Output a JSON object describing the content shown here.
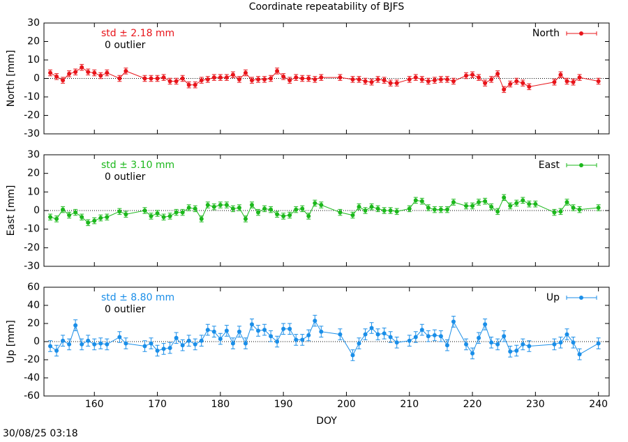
{
  "title": "Coordinate repeatability of BJFS",
  "timestamp": "30/08/25 03:18",
  "chart_data": [
    {
      "type": "line",
      "ylabel": "North [mm]",
      "annotations": [
        "std ± 2.18 mm",
        "0 outlier"
      ],
      "xlim": [
        152,
        241.7
      ],
      "xticks": [
        160,
        170,
        180,
        190,
        200,
        210,
        220,
        230,
        240
      ],
      "ylim": [
        -30,
        30
      ],
      "yticks": [
        -30,
        -20,
        -10,
        0,
        10,
        20,
        30
      ],
      "series": [
        {
          "name": "North",
          "color": "#e8141a",
          "yerr": 1.6,
          "x": [
            153,
            154,
            155,
            156,
            157,
            158,
            159,
            160,
            161,
            162,
            164,
            165,
            168,
            169,
            170,
            171,
            172,
            173,
            174,
            175,
            176,
            177,
            178,
            179,
            180,
            181,
            182,
            183,
            184,
            185,
            186,
            187,
            188,
            189,
            190,
            191,
            192,
            193,
            194,
            195,
            196,
            199,
            201,
            202,
            203,
            204,
            205,
            206,
            207,
            208,
            210,
            211,
            212,
            213,
            214,
            215,
            216,
            217,
            219,
            220,
            221,
            222,
            223,
            224,
            225,
            226,
            227,
            228,
            229,
            233,
            234,
            235,
            236,
            237,
            240
          ],
          "values": [
            3,
            1,
            -1,
            2.5,
            3.5,
            6,
            3.5,
            3,
            1.5,
            3,
            0,
            4,
            0,
            0,
            0,
            0.5,
            -1.5,
            -1.5,
            0,
            -3.5,
            -3.5,
            -1,
            -0.5,
            0.5,
            0.5,
            0.5,
            2,
            -0.5,
            3,
            -1,
            -0.5,
            -0.5,
            0,
            4,
            1,
            -1,
            0.5,
            0,
            0,
            -0.5,
            0.5,
            0.5,
            -0.5,
            -0.5,
            -1.5,
            -2,
            -0.5,
            -1,
            -2.5,
            -2.5,
            -0.5,
            0.5,
            -0.5,
            -1.5,
            -1,
            -0.5,
            -0.5,
            -1.5,
            1.5,
            2,
            0.5,
            -2.5,
            -0.5,
            2.5,
            -6,
            -3,
            -1.5,
            -2.5,
            -4.5,
            -2,
            2,
            -1.5,
            -2,
            0.5,
            -1.5
          ]
        }
      ]
    },
    {
      "type": "line",
      "ylabel": "East [mm]",
      "annotations": [
        "std ± 3.10 mm",
        "0 outlier"
      ],
      "xlim": [
        152,
        241.7
      ],
      "xticks": [
        160,
        170,
        180,
        190,
        200,
        210,
        220,
        230,
        240
      ],
      "ylim": [
        -30,
        30
      ],
      "yticks": [
        -30,
        -20,
        -10,
        0,
        10,
        20,
        30
      ],
      "series": [
        {
          "name": "East",
          "color": "#1cb81c",
          "yerr": 1.6,
          "x": [
            153,
            154,
            155,
            156,
            157,
            158,
            159,
            160,
            161,
            162,
            164,
            165,
            168,
            169,
            170,
            171,
            172,
            173,
            174,
            175,
            176,
            177,
            178,
            179,
            180,
            181,
            182,
            183,
            184,
            185,
            186,
            187,
            188,
            189,
            190,
            191,
            192,
            193,
            194,
            195,
            196,
            199,
            201,
            202,
            203,
            204,
            205,
            206,
            207,
            208,
            210,
            211,
            212,
            213,
            214,
            215,
            216,
            217,
            219,
            220,
            221,
            222,
            223,
            224,
            225,
            226,
            227,
            228,
            229,
            230,
            233,
            234,
            235,
            236,
            237,
            240
          ],
          "values": [
            -3.5,
            -4.5,
            0.5,
            -2.5,
            -1,
            -3.5,
            -6.5,
            -5.5,
            -4,
            -3.5,
            -0.5,
            -2,
            0,
            -3,
            -1.5,
            -3.5,
            -3,
            -1,
            -1,
            1.5,
            1,
            -4.5,
            3,
            2,
            3,
            3,
            1,
            1.5,
            -4.5,
            3,
            -1,
            1,
            0.5,
            -2,
            -3,
            -2.5,
            0.5,
            1,
            -3,
            4,
            3,
            -1,
            -2.5,
            2,
            0,
            2,
            1,
            0,
            0,
            -0.5,
            1,
            5.5,
            5,
            1.5,
            0.5,
            0.5,
            0.5,
            4.5,
            2.5,
            2.5,
            4.5,
            5,
            2,
            -0.5,
            7,
            2.5,
            4,
            5.5,
            3.5,
            3.5,
            -1,
            -0.5,
            4.5,
            1.5,
            0.5,
            1.5
          ]
        }
      ]
    },
    {
      "type": "line",
      "ylabel": "Up [mm]",
      "xlabel": "DOY",
      "annotations": [
        "std ± 8.80 mm",
        "0 outlier"
      ],
      "xlim": [
        152,
        241.7
      ],
      "xticks": [
        160,
        170,
        180,
        190,
        200,
        210,
        220,
        230,
        240
      ],
      "ylim": [
        -60,
        60
      ],
      "yticks": [
        -60,
        -40,
        -20,
        0,
        20,
        40,
        60
      ],
      "series": [
        {
          "name": "Up",
          "color": "#1a8ee8",
          "yerr": 6,
          "x": [
            153,
            154,
            155,
            156,
            157,
            158,
            159,
            160,
            161,
            162,
            164,
            165,
            168,
            169,
            170,
            171,
            172,
            173,
            174,
            175,
            176,
            177,
            178,
            179,
            180,
            181,
            182,
            183,
            184,
            185,
            186,
            187,
            188,
            189,
            190,
            191,
            192,
            193,
            194,
            195,
            196,
            199,
            201,
            202,
            203,
            204,
            205,
            206,
            207,
            208,
            210,
            211,
            212,
            213,
            214,
            215,
            216,
            217,
            219,
            220,
            221,
            222,
            223,
            224,
            225,
            226,
            227,
            228,
            229,
            233,
            234,
            235,
            236,
            237,
            240
          ],
          "values": [
            -5,
            -10,
            1,
            -3,
            18,
            -3,
            1,
            -3,
            -2,
            -3,
            5,
            -2,
            -5,
            -2,
            -10,
            -8,
            -7,
            4,
            -4,
            1,
            -3,
            1,
            13,
            11,
            3,
            12,
            -2,
            11,
            -2,
            19,
            12,
            13,
            6,
            0,
            14,
            14,
            2,
            2,
            7,
            23,
            11,
            8,
            -15,
            -2,
            8,
            15,
            8,
            9,
            5,
            -1,
            1,
            5,
            13,
            6,
            7,
            6,
            -4,
            22,
            -3,
            -13,
            4,
            19,
            -1,
            -3,
            6,
            -11,
            -10,
            -3,
            -5,
            -3,
            -1,
            8,
            -1,
            -14,
            -2
          ]
        }
      ]
    }
  ]
}
